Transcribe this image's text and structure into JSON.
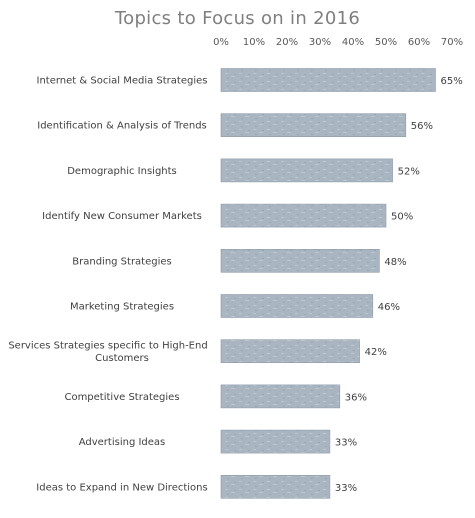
{
  "chart_data": {
    "type": "bar",
    "orientation": "horizontal",
    "title": "Topics to Focus on in 2016",
    "categories": [
      "Internet & Social Media Strategies",
      "Identification & Analysis of Trends",
      "Demographic Insights",
      "Identify New Consumer Markets",
      "Branding Strategies",
      "Marketing Strategies",
      [
        "Services Strategies specific to High-End",
        "Customers"
      ],
      "Competitive Strategies",
      "Advertising Ideas",
      "Ideas to Expand in New Directions"
    ],
    "values": [
      65,
      56,
      52,
      50,
      48,
      46,
      42,
      36,
      33,
      33
    ],
    "data_labels": [
      "65%",
      "56%",
      "52%",
      "50%",
      "48%",
      "46%",
      "42%",
      "36%",
      "33%",
      "33%"
    ],
    "x_ticks": [
      "0%",
      "10%",
      "20%",
      "30%",
      "40%",
      "50%",
      "60%",
      "70%"
    ],
    "xlim": [
      0,
      70
    ],
    "x_axis_position": "top",
    "grid": false,
    "legend": "none",
    "bar_color": "#a9b6c2",
    "bar_edge_color": "#8e9ba8"
  }
}
